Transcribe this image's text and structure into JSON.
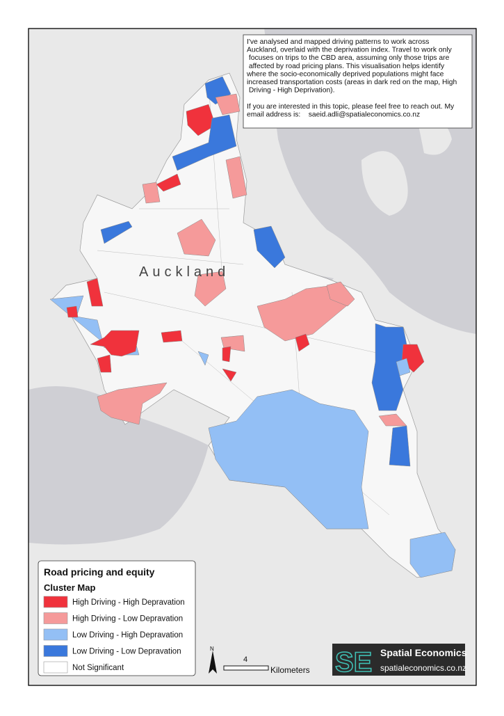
{
  "info": {
    "paragraphs": [
      [
        "I've analysed and mapped driving patterns to work across",
        "Auckland, overlaid with the deprivation index. Travel to work only",
        " focuses on trips to the CBD area, assuming only those trips are",
        " affected by road pricing plans. This visualisation helps identify",
        "where the socio-economically deprived populations might face",
        "increased transportation costs (areas in dark red on the map, High",
        " Driving - High Deprivation)."
      ],
      [
        "If you are interested in this topic, please feel free to reach out. My",
        "email address is:    saeid.adli@spatialeconomics.co.nz"
      ]
    ]
  },
  "map": {
    "place_label": "Auckland"
  },
  "legend": {
    "title": "Road pricing and equity",
    "subtitle": "Cluster Map",
    "items": [
      {
        "label": "High Driving - High Depravation",
        "color": "#f0323c"
      },
      {
        "label": "High Driving - Low Depravation",
        "color": "#f59a9a"
      },
      {
        "label": "Low Driving - High Depravation",
        "color": "#93bff5"
      },
      {
        "label": "Low Driving - Low Depravation",
        "color": "#3a78dc"
      },
      {
        "label": "Not Significant",
        "color": "#ffffff"
      }
    ]
  },
  "north_arrow": {
    "label": "N"
  },
  "scale_bar": {
    "value_label": "4",
    "unit": "Kilometers"
  },
  "logo": {
    "mark": "SE",
    "name": "Spatial Economics",
    "url": "spatialeconomics.co.nz"
  }
}
